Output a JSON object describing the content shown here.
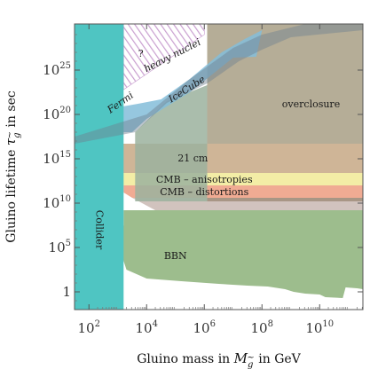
{
  "chart_data": {
    "type": "area",
    "title": "",
    "xlabel": {
      "prefix": "Gluino mass in ",
      "symbol": "M",
      "subscript": "g",
      "subscript_mark": "~",
      "suffix": " in GeV"
    },
    "ylabel": {
      "prefix": "Gluino lifetime ",
      "symbol": "τ",
      "subscript": "g",
      "subscript_mark": "~",
      "suffix": " in sec"
    },
    "x_scale": "log10",
    "y_scale": "log10",
    "xlim_log10": [
      1.5,
      11.5
    ],
    "ylim_log10": [
      -2,
      30.2
    ],
    "x_ticks": [
      {
        "log10": 2,
        "base": "10",
        "exp": "2"
      },
      {
        "log10": 4,
        "base": "10",
        "exp": "4"
      },
      {
        "log10": 6,
        "base": "10",
        "exp": "6"
      },
      {
        "log10": 8,
        "base": "10",
        "exp": "8"
      },
      {
        "log10": 10,
        "base": "10",
        "exp": "10"
      }
    ],
    "y_ticks": [
      {
        "log10": 0,
        "text": "1"
      },
      {
        "log10": 5,
        "base": "10",
        "exp": "5"
      },
      {
        "log10": 10,
        "base": "10",
        "exp": "10"
      },
      {
        "log10": 15,
        "base": "10",
        "exp": "15"
      },
      {
        "log10": 20,
        "base": "10",
        "exp": "20"
      },
      {
        "log10": 25,
        "base": "10",
        "exp": "25"
      }
    ],
    "regions": [
      {
        "name": "BBN",
        "color": "#9dbd8d",
        "polygon_log10": [
          [
            3.2,
            9.2
          ],
          [
            3.2,
            7.5
          ],
          [
            3.0,
            6.5
          ],
          [
            3.1,
            4.5
          ],
          [
            3.3,
            2.5
          ],
          [
            4.0,
            1.5
          ],
          [
            5.2,
            1.2
          ],
          [
            6.5,
            0.9
          ],
          [
            7.5,
            0.7
          ],
          [
            8.2,
            0.6
          ],
          [
            8.8,
            0.3
          ],
          [
            9.1,
            0
          ],
          [
            9.5,
            -0.2
          ],
          [
            10.0,
            -0.3
          ],
          [
            10.2,
            -0.6
          ],
          [
            10.8,
            -0.7
          ],
          [
            10.9,
            0.5
          ],
          [
            11.3,
            0.4
          ],
          [
            11.5,
            0.3
          ],
          [
            11.5,
            9.2
          ]
        ]
      },
      {
        "name": "overclosure",
        "color": "#b5ad97",
        "polygon_log10": [
          [
            6.1,
            30.2
          ],
          [
            11.5,
            30.2
          ],
          [
            11.5,
            10.2
          ],
          [
            6.1,
            10.2
          ]
        ]
      },
      {
        "name": "21 cm",
        "color": "#cfb597",
        "polygon_log10": [
          [
            1.5,
            16.7
          ],
          [
            11.5,
            16.7
          ],
          [
            11.5,
            13.4
          ],
          [
            1.5,
            13.4
          ]
        ]
      },
      {
        "name": "CMB – anisotropies",
        "color": "#f3eda6",
        "polygon_log10": [
          [
            1.5,
            13.4
          ],
          [
            11.5,
            13.4
          ],
          [
            11.5,
            12.0
          ],
          [
            1.5,
            12.0
          ]
        ]
      },
      {
        "name": "CMB – distortions",
        "color": "#f0ab93",
        "polygon_log10": [
          [
            3.2,
            12.0
          ],
          [
            11.5,
            12.0
          ],
          [
            11.5,
            10.6
          ],
          [
            3.5,
            10.6
          ],
          [
            3.2,
            11.2
          ]
        ]
      },
      {
        "name": "",
        "color": "#9a7a6e",
        "polygon_log10": [
          [
            3.5,
            10.6
          ],
          [
            11.5,
            10.6
          ],
          [
            11.5,
            9.2
          ],
          [
            4.3,
            9.2
          ]
        ]
      },
      {
        "name": "IceCube",
        "color": "#9bb19e",
        "polygon_log10": [
          [
            3.6,
            18.0
          ],
          [
            4.7,
            21.5
          ],
          [
            6.1,
            23.3
          ],
          [
            6.1,
            10.2
          ],
          [
            3.6,
            10.2
          ]
        ]
      },
      {
        "name": "Fermi",
        "color": "#84bdd9",
        "polygon_log10": [
          [
            1.5,
            18.0
          ],
          [
            1.8,
            19.8
          ],
          [
            2.2,
            20.5
          ],
          [
            3.0,
            20.8
          ],
          [
            3.7,
            21.2
          ],
          [
            4.5,
            21.7
          ],
          [
            5.5,
            24.0
          ],
          [
            6.6,
            27.0
          ],
          [
            7.4,
            28.5
          ],
          [
            8.0,
            29.5
          ],
          [
            7.8,
            26.5
          ],
          [
            7.0,
            26.4
          ],
          [
            5.5,
            22.5
          ],
          [
            4.0,
            19.5
          ],
          [
            3.5,
            18.0
          ]
        ]
      },
      {
        "name": "heavy nuclei",
        "color": "#d8b8dc",
        "polygon_log10": [
          [
            3.2,
            30.2
          ],
          [
            6.0,
            30.2
          ],
          [
            6.0,
            29.0
          ],
          [
            3.2,
            22.8
          ]
        ]
      },
      {
        "name": "Collider",
        "color": "#4fc5c2",
        "polygon_log10": [
          [
            1.5,
            30.2
          ],
          [
            3.2,
            30.2
          ],
          [
            3.2,
            -2.0
          ],
          [
            1.5,
            -2.0
          ]
        ]
      },
      {
        "name": "",
        "color": "#6f8090",
        "polygon_log10": [
          [
            1.5,
            17.5
          ],
          [
            4.0,
            20.0
          ],
          [
            5.5,
            24.0
          ],
          [
            7.0,
            27.5
          ],
          [
            8.0,
            29.0
          ],
          [
            9.5,
            30.2
          ],
          [
            11.5,
            30.2
          ],
          [
            11.5,
            29.5
          ],
          [
            9.0,
            28.7
          ],
          [
            8.0,
            27.3
          ],
          [
            7.2,
            26.0
          ],
          [
            6.1,
            23.5
          ],
          [
            4.7,
            21.3
          ],
          [
            3.6,
            18.0
          ],
          [
            1.5,
            16.7
          ]
        ]
      }
    ],
    "labels": [
      {
        "text": "?",
        "at_log10": [
          3.8,
          26.8
        ]
      },
      {
        "text": "heavy nuclei",
        "at_log10": [
          4.9,
          26.6
        ],
        "rotate": -27
      },
      {
        "text": "IceCube",
        "at_log10": [
          5.4,
          22.8
        ],
        "rotate": -32
      },
      {
        "text": "Fermi",
        "at_log10": [
          3.1,
          21.3
        ],
        "rotate": -35
      },
      {
        "text": "overclosure",
        "at_log10": [
          9.7,
          21.1
        ]
      },
      {
        "text": "21 cm",
        "at_log10": [
          5.6,
          15.0
        ]
      },
      {
        "text": "CMB – anisotropies",
        "at_log10": [
          6.0,
          12.6
        ]
      },
      {
        "text": "CMB – distortions",
        "at_log10": [
          6.0,
          11.2
        ]
      },
      {
        "text": "Collider",
        "at_log10": [
          2.35,
          7.0
        ],
        "rotate": 90
      },
      {
        "text": "BBN",
        "at_log10": [
          5.0,
          4.0
        ]
      }
    ]
  }
}
